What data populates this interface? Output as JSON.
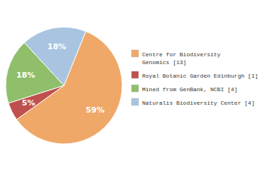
{
  "chart_data": {
    "type": "pie",
    "categories": [
      "Centre for Biodiversity\nGenomics [13]",
      "Royal Botanic Garden Edinburgh [1]",
      "Mined from GenBank, NCBI [4]",
      "Naturalis Biodiversity Center [4]"
    ],
    "values": [
      59,
      5,
      18,
      18
    ],
    "value_labels": [
      "59%",
      "5%",
      "18%",
      "18%"
    ],
    "colors": [
      "#f0a868",
      "#c0504d",
      "#8fbf6a",
      "#a8c4e0"
    ],
    "data_labels": true,
    "legend": "right"
  }
}
